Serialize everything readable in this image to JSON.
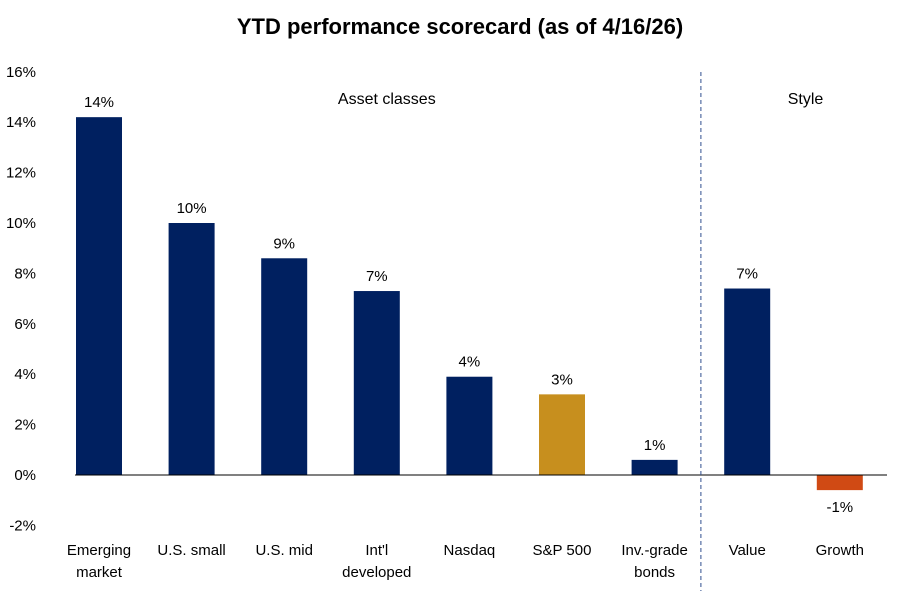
{
  "chart_data": {
    "type": "bar",
    "title": "YTD performance scorecard (as of 4/16/26)",
    "categories": [
      "Emerging market",
      "U.S. small",
      "U.S. mid",
      "Int'l developed",
      "Nasdaq",
      "S&P 500",
      "Inv.-grade bonds",
      "Value",
      "Growth"
    ],
    "category_lines": [
      [
        "Emerging",
        "market"
      ],
      [
        "U.S. small"
      ],
      [
        "U.S. mid"
      ],
      [
        "Int'l",
        "developed"
      ],
      [
        "Nasdaq"
      ],
      [
        "S&P 500"
      ],
      [
        "Inv.-grade",
        "bonds"
      ],
      [
        "Value"
      ],
      [
        "Growth"
      ]
    ],
    "values": [
      14.2,
      10.0,
      8.6,
      7.3,
      3.9,
      3.2,
      0.6,
      7.4,
      -0.6
    ],
    "data_labels": [
      "14%",
      "10%",
      "9%",
      "7%",
      "4%",
      "3%",
      "1%",
      "7%",
      "-1%"
    ],
    "bar_colors": [
      "#002060",
      "#002060",
      "#002060",
      "#002060",
      "#002060",
      "#C78F1E",
      "#002060",
      "#002060",
      "#D04A14"
    ],
    "ylim": [
      -2,
      16
    ],
    "yticks": [
      -2,
      0,
      2,
      4,
      6,
      8,
      10,
      12,
      14,
      16
    ],
    "ytick_labels": [
      "-2%",
      "0%",
      "2%",
      "4%",
      "6%",
      "8%",
      "10%",
      "12%",
      "14%",
      "16%"
    ],
    "xlabel": "",
    "ylabel": "",
    "grid": false,
    "groups": [
      {
        "label": "Asset classes",
        "categories": 7
      },
      {
        "label": "Style",
        "categories": 2
      }
    ],
    "legend": "none"
  }
}
